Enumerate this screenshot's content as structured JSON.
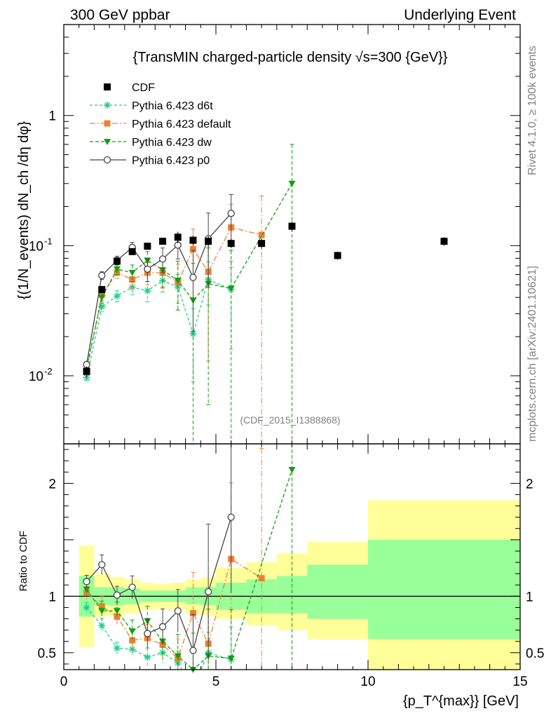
{
  "header": {
    "left": "300 GeV ppbar",
    "right": "Underlying Event"
  },
  "side": {
    "rivet": "Rivet 4.1.0, ≥ 100k events",
    "mcplots": "mcplots.cern.ch [arXiv:2401.10621]"
  },
  "chart_data": {
    "type": "line",
    "title": "{TransMIN charged-particle density √s=300 {GeV}}",
    "analysis_label": "(CDF_2015_I1388868)",
    "xlabel": "{p_T^{max}} [GeV]",
    "ylabel": "{(1/N_events) dN_ch /dη dφ}",
    "ratio_ylabel": "Ratio to CDF",
    "xlim": [
      0,
      15
    ],
    "ylim": [
      0.003,
      5
    ],
    "ratio_ylim": [
      0.35,
      2.35
    ],
    "yscale": "log",
    "x_ticks": [
      0,
      5,
      10,
      15
    ],
    "y_ticks": [
      {
        "v": 0.01,
        "label": "10",
        "exp": "-2"
      },
      {
        "v": 0.1,
        "label": "10",
        "exp": "-1"
      },
      {
        "v": 1,
        "label": "1",
        "exp": ""
      }
    ],
    "ratio_ticks": [
      0.5,
      1,
      2
    ],
    "legend": {
      "position": "top-left"
    },
    "data": {
      "name": "CDF",
      "x": [
        0.75,
        1.25,
        1.75,
        2.25,
        2.75,
        3.25,
        3.75,
        4.25,
        4.75,
        5.5,
        6.5,
        7.5,
        9.0,
        12.5
      ],
      "y": [
        0.0108,
        0.046,
        0.076,
        0.09,
        0.099,
        0.108,
        0.116,
        0.11,
        0.108,
        0.104,
        0.104,
        0.141,
        0.084,
        0.108
      ],
      "err": [
        0.001,
        0.003,
        0.004,
        0.004,
        0.004,
        0.005,
        0.012,
        0.01,
        0.01,
        0.008,
        0.009,
        0.012,
        0.006,
        0.008
      ]
    },
    "band_edges": [
      0.5,
      1.0,
      1.5,
      2.0,
      2.5,
      3.0,
      3.5,
      4.0,
      4.5,
      5.0,
      6.0,
      7.0,
      8.0,
      10.0,
      15.0
    ],
    "band_inner": [
      [
        0.82,
        1.18
      ],
      [
        0.92,
        1.08
      ],
      [
        0.92,
        1.08
      ],
      [
        0.93,
        1.07
      ],
      [
        0.95,
        1.05
      ],
      [
        0.95,
        1.05
      ],
      [
        0.95,
        1.05
      ],
      [
        0.93,
        1.08
      ],
      [
        0.92,
        1.08
      ],
      [
        0.88,
        1.12
      ],
      [
        0.85,
        1.15
      ],
      [
        0.85,
        1.18
      ],
      [
        0.8,
        1.28
      ],
      [
        0.62,
        1.5
      ]
    ],
    "band_outer": [
      [
        0.55,
        1.45
      ],
      [
        0.82,
        1.2
      ],
      [
        0.83,
        1.17
      ],
      [
        0.85,
        1.15
      ],
      [
        0.88,
        1.12
      ],
      [
        0.89,
        1.11
      ],
      [
        0.88,
        1.12
      ],
      [
        0.85,
        1.15
      ],
      [
        0.83,
        1.17
      ],
      [
        0.8,
        1.25
      ],
      [
        0.74,
        1.3
      ],
      [
        0.7,
        1.38
      ],
      [
        0.62,
        1.48
      ],
      [
        0.35,
        1.85
      ]
    ],
    "series": [
      {
        "name": "Pythia 6.423 d6t",
        "color": "#1fcf8a",
        "dash": "4,3",
        "marker": "star",
        "x": [
          0.75,
          1.25,
          1.75,
          2.25,
          2.75,
          3.25,
          3.75,
          4.25,
          4.75,
          5.5
        ],
        "y": [
          0.0097,
          0.034,
          0.041,
          0.048,
          0.045,
          0.054,
          0.048,
          0.021,
          0.055,
          0.046
        ],
        "err": [
          0.0005,
          0.003,
          0.004,
          0.006,
          0.008,
          0.01,
          0.012,
          0.012,
          0.02,
          0.03
        ],
        "ratio": [
          0.9,
          0.74,
          0.54,
          0.53,
          0.46,
          0.5,
          0.41,
          0.19,
          0.5,
          0.44
        ]
      },
      {
        "name": "Pythia 6.423 default",
        "color": "#f08030",
        "dash": "8,3,2,3",
        "marker": "square",
        "x": [
          0.75,
          1.25,
          1.75,
          2.25,
          2.75,
          3.25,
          3.75,
          4.25,
          4.75,
          5.5,
          6.5
        ],
        "y": [
          0.011,
          0.042,
          0.062,
          0.055,
          0.062,
          0.062,
          0.052,
          0.094,
          0.063,
          0.138,
          0.121
        ],
        "err": [
          0.0006,
          0.004,
          0.006,
          0.008,
          0.012,
          0.015,
          0.02,
          0.04,
          0.05,
          0.07,
          0.12
        ],
        "ratio": [
          1.03,
          0.91,
          0.82,
          0.61,
          0.63,
          0.57,
          0.45,
          0.85,
          0.58,
          1.33,
          1.16
        ]
      },
      {
        "name": "Pythia 6.423 dw",
        "color": "#10a010",
        "dash": "5,3",
        "marker": "triangle",
        "x": [
          0.75,
          1.25,
          1.75,
          2.25,
          2.75,
          3.25,
          3.75,
          4.25,
          4.75,
          5.5,
          7.5
        ],
        "y": [
          0.0115,
          0.04,
          0.066,
          0.062,
          0.077,
          0.065,
          0.054,
          0.038,
          0.051,
          0.047,
          0.3
        ],
        "err": [
          0.0006,
          0.004,
          0.006,
          0.009,
          0.013,
          0.017,
          0.022,
          0.035,
          0.045,
          0.045,
          0.3
        ],
        "ratio": [
          1.06,
          0.87,
          0.87,
          0.69,
          0.78,
          0.6,
          0.47,
          0.35,
          0.47,
          0.45,
          2.12
        ]
      },
      {
        "name": "Pythia 6.423 p0",
        "color": "#444444",
        "dash": "",
        "marker": "circle",
        "x": [
          0.75,
          1.25,
          1.75,
          2.25,
          2.75,
          3.25,
          3.75,
          4.25,
          4.75,
          5.5
        ],
        "y": [
          0.0122,
          0.059,
          0.077,
          0.097,
          0.066,
          0.079,
          0.101,
          0.057,
          0.113,
          0.177
        ],
        "err": [
          0.0006,
          0.004,
          0.006,
          0.009,
          0.013,
          0.017,
          0.022,
          0.035,
          0.065,
          0.07
        ],
        "ratio": [
          1.13,
          1.28,
          1.01,
          1.08,
          0.67,
          0.73,
          0.87,
          0.52,
          1.04,
          1.7
        ]
      }
    ]
  }
}
